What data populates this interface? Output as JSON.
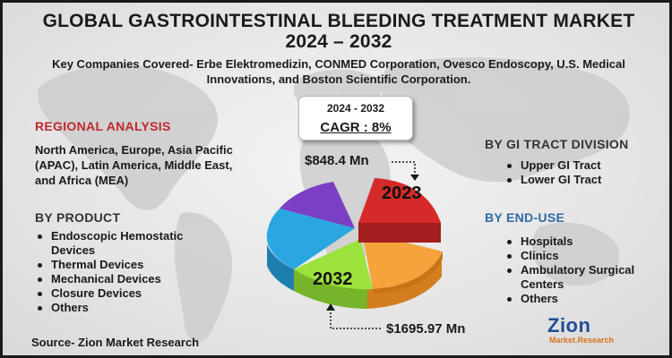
{
  "title": {
    "line1": "GLOBAL GASTROINTESTINAL BLEEDING TREATMENT MARKET",
    "line2": "2024 – 2032"
  },
  "companies": {
    "line1": "Key Companies Covered- Erbe Elektromedizin, CONMED Corporation, Ovesco Endoscopy, U.S. Medical",
    "line2": "Innovations, and Boston Scientific Corporation."
  },
  "cagr": {
    "years": "2024 - 2032",
    "value": "CAGR : 8%"
  },
  "regional": {
    "heading": "REGIONAL ANALYSIS",
    "line1": "North America, Europe, Asia Pacific",
    "line2": "(APAC), Latin America, Middle East,",
    "line3": "and Africa (MEA)"
  },
  "product": {
    "heading": "BY PRODUCT",
    "items": [
      {
        "label": "Endoscopic Hemostatic"
      },
      {
        "label": "Devices"
      },
      {
        "label": "Thermal Devices"
      },
      {
        "label": "Mechanical Devices"
      },
      {
        "label": "Closure Devices"
      },
      {
        "label": "Others"
      }
    ]
  },
  "gi_tract": {
    "heading": "BY GI TRACT DIVISION",
    "items": [
      {
        "label": "Upper GI Tract"
      },
      {
        "label": "Lower GI Tract"
      }
    ]
  },
  "end_use": {
    "heading": "BY END-USE",
    "items": [
      {
        "label": "Hospitals"
      },
      {
        "label": "Clinics"
      },
      {
        "label": "Ambulatory Surgical"
      },
      {
        "label": "Centers"
      },
      {
        "label": "Others"
      }
    ]
  },
  "pie": {
    "label_2023": "2023",
    "label_2032": "2032",
    "colors": {
      "red": "#d42a2a",
      "orange": "#f5a33a",
      "green": "#9be23c",
      "blue": "#2aa6e0",
      "purple": "#7a3fc4"
    }
  },
  "values": {
    "start": "$848.4 Mn",
    "end": "$1695.97 Mn"
  },
  "source": "Source- Zion Market Research",
  "logo": {
    "main": "Zion",
    "sub": "Market.Research"
  }
}
